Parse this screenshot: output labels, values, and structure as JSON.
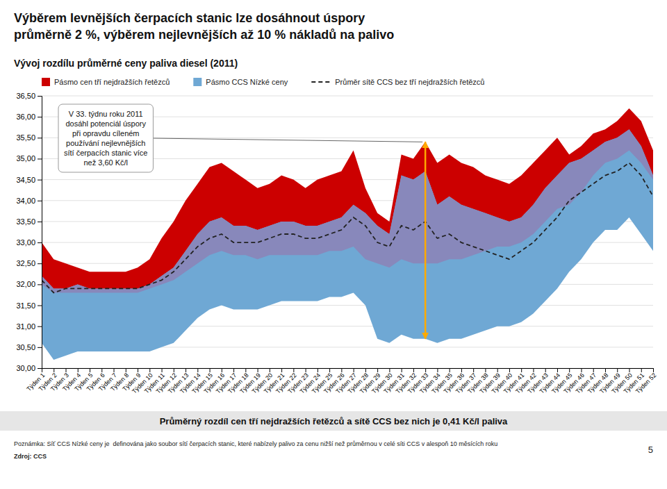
{
  "chart_data": {
    "type": "area",
    "title": "Výběrem levnějších čerpacích stanic lze dosáhnout úspory\nprůměrně 2 %, výběrem nejlevnějších až 10 % nákladů na palivo",
    "subtitle": "Vývoj rozdílu průměrné ceny paliva diesel (2011)",
    "x": [
      1,
      2,
      3,
      4,
      5,
      6,
      7,
      8,
      9,
      10,
      11,
      12,
      13,
      14,
      15,
      16,
      17,
      18,
      19,
      20,
      21,
      22,
      23,
      24,
      25,
      26,
      27,
      28,
      29,
      30,
      31,
      32,
      33,
      34,
      35,
      36,
      37,
      38,
      39,
      40,
      41,
      42,
      43,
      44,
      45,
      46,
      47,
      48,
      49,
      50,
      51,
      52
    ],
    "xlim": [
      1,
      52
    ],
    "xticks": [
      {
        "value": 1,
        "label": "Týden 1"
      },
      {
        "value": 2,
        "label": "Týden 2"
      },
      {
        "value": 3,
        "label": "Týden 3"
      },
      {
        "value": 4,
        "label": "Týden 4"
      },
      {
        "value": 5,
        "label": "Týden 5"
      },
      {
        "value": 6,
        "label": "Týden 6"
      },
      {
        "value": 7,
        "label": "Týden 7"
      },
      {
        "value": 8,
        "label": "Týden 8"
      },
      {
        "value": 9,
        "label": "Týden 9"
      },
      {
        "value": 10,
        "label": "Týden 10"
      },
      {
        "value": 11,
        "label": "Týden 11"
      },
      {
        "value": 12,
        "label": "Týden 12"
      },
      {
        "value": 13,
        "label": "Týden 13"
      },
      {
        "value": 14,
        "label": "Týden 14"
      },
      {
        "value": 15,
        "label": "Týden 15"
      },
      {
        "value": 16,
        "label": "Týden 16"
      },
      {
        "value": 17,
        "label": "Týden 17"
      },
      {
        "value": 18,
        "label": "Týden 18"
      },
      {
        "value": 19,
        "label": "Týden 19"
      },
      {
        "value": 20,
        "label": "Týden 20"
      },
      {
        "value": 21,
        "label": "Týden 21"
      },
      {
        "value": 22,
        "label": "Týden 22"
      },
      {
        "value": 23,
        "label": "Týden 23"
      },
      {
        "value": 24,
        "label": "Týden 24"
      },
      {
        "value": 25,
        "label": "Týden 25"
      },
      {
        "value": 26,
        "label": "Týden 26"
      },
      {
        "value": 27,
        "label": "Týden 27"
      },
      {
        "value": 28,
        "label": "Týden 28"
      },
      {
        "value": 29,
        "label": "Týden 29"
      },
      {
        "value": 30,
        "label": "Týden 30"
      },
      {
        "value": 31,
        "label": "Týden 31"
      },
      {
        "value": 32,
        "label": "Týden 32"
      },
      {
        "value": 33,
        "label": "Týden 33"
      },
      {
        "value": 34,
        "label": "Týden 34"
      },
      {
        "value": 35,
        "label": "Týden 35"
      },
      {
        "value": 36,
        "label": "Týden 36"
      },
      {
        "value": 37,
        "label": "Týden 37"
      },
      {
        "value": 38,
        "label": "Týden 38"
      },
      {
        "value": 39,
        "label": "Týden 39"
      },
      {
        "value": 40,
        "label": "Týden 40"
      },
      {
        "value": 41,
        "label": "Týden 41"
      },
      {
        "value": 42,
        "label": "Týden 42"
      },
      {
        "value": 43,
        "label": "Týden 43"
      },
      {
        "value": 44,
        "label": "Týden 44"
      },
      {
        "value": 45,
        "label": "Týden 45"
      },
      {
        "value": 46,
        "label": "Týden 46"
      },
      {
        "value": 47,
        "label": "Týden 47"
      },
      {
        "value": 48,
        "label": "Týden 48"
      },
      {
        "value": 49,
        "label": "Týden 49"
      },
      {
        "value": 50,
        "label": "Týden 50"
      },
      {
        "value": 51,
        "label": "Týden 51"
      },
      {
        "value": 52,
        "label": "Týden 52"
      }
    ],
    "ylim": [
      30.0,
      36.5
    ],
    "yticks": [
      {
        "value": 30.0,
        "label": "30,00"
      },
      {
        "value": 30.5,
        "label": "30,50"
      },
      {
        "value": 31.0,
        "label": "31,00"
      },
      {
        "value": 31.5,
        "label": "31,50"
      },
      {
        "value": 32.0,
        "label": "32,00"
      },
      {
        "value": 32.5,
        "label": "32,50"
      },
      {
        "value": 33.0,
        "label": "33,00"
      },
      {
        "value": 33.5,
        "label": "33,50"
      },
      {
        "value": 34.0,
        "label": "34,00"
      },
      {
        "value": 34.5,
        "label": "34,50"
      },
      {
        "value": 35.0,
        "label": "35,00"
      },
      {
        "value": 35.5,
        "label": "35,50"
      },
      {
        "value": 36.0,
        "label": "36,00"
      },
      {
        "value": 36.5,
        "label": "36,50"
      }
    ],
    "grid": true,
    "legend": "top",
    "series": [
      {
        "name": "Pásmo cen tří nejdražších řetězců",
        "type": "band",
        "color": "#cc0000",
        "upper": [
          33.0,
          32.6,
          32.5,
          32.4,
          32.3,
          32.3,
          32.3,
          32.3,
          32.4,
          32.6,
          33.1,
          33.5,
          34.0,
          34.4,
          34.8,
          34.9,
          34.7,
          34.5,
          34.3,
          34.4,
          34.6,
          34.5,
          34.3,
          34.5,
          34.6,
          34.7,
          35.2,
          34.3,
          33.7,
          33.5,
          35.1,
          35.0,
          35.4,
          34.9,
          35.1,
          34.9,
          34.8,
          34.6,
          34.5,
          34.4,
          34.6,
          34.9,
          35.2,
          35.5,
          35.1,
          35.3,
          35.6,
          35.7,
          35.9,
          36.2,
          35.9,
          35.2
        ],
        "lower": [
          32.0,
          31.8,
          31.8,
          31.8,
          31.8,
          31.8,
          31.8,
          31.8,
          31.8,
          31.9,
          32.0,
          32.1,
          32.3,
          32.5,
          32.7,
          32.8,
          32.7,
          32.7,
          32.6,
          32.7,
          32.7,
          32.7,
          32.7,
          32.7,
          32.8,
          32.8,
          32.9,
          32.6,
          32.5,
          32.4,
          32.6,
          32.5,
          32.5,
          32.5,
          32.6,
          32.6,
          32.7,
          32.8,
          32.9,
          32.9,
          33.0,
          33.2,
          33.5,
          33.8,
          33.9,
          34.2,
          34.6,
          34.9,
          35.0,
          35.2,
          34.9,
          34.5
        ]
      },
      {
        "name": "Pásmo CCS Nízké ceny",
        "type": "band",
        "color": "#6fa8d4",
        "upper": [
          32.2,
          31.9,
          31.9,
          32.0,
          31.9,
          31.9,
          31.9,
          31.9,
          31.9,
          32.0,
          32.2,
          32.4,
          32.8,
          33.2,
          33.5,
          33.6,
          33.4,
          33.4,
          33.3,
          33.4,
          33.5,
          33.5,
          33.4,
          33.4,
          33.5,
          33.6,
          33.9,
          33.7,
          33.4,
          33.2,
          34.6,
          34.5,
          34.7,
          33.9,
          34.1,
          33.9,
          33.8,
          33.7,
          33.6,
          33.5,
          33.6,
          33.9,
          34.3,
          34.6,
          34.9,
          35.0,
          35.2,
          35.4,
          35.5,
          35.7,
          35.3,
          34.6
        ],
        "lower": [
          30.6,
          30.2,
          30.3,
          30.4,
          30.4,
          30.4,
          30.4,
          30.4,
          30.4,
          30.4,
          30.5,
          30.6,
          30.9,
          31.2,
          31.4,
          31.5,
          31.4,
          31.4,
          31.4,
          31.5,
          31.6,
          31.6,
          31.6,
          31.6,
          31.7,
          31.7,
          31.8,
          31.5,
          30.7,
          30.6,
          30.8,
          30.7,
          30.7,
          30.6,
          30.7,
          30.7,
          30.8,
          30.9,
          31.0,
          31.0,
          31.1,
          31.3,
          31.6,
          31.9,
          32.3,
          32.6,
          33.0,
          33.3,
          33.3,
          33.6,
          33.2,
          32.8
        ]
      },
      {
        "type": "band",
        "color": "#8888bb",
        "upper": [
          32.2,
          31.9,
          31.9,
          32.0,
          31.9,
          31.9,
          31.9,
          31.9,
          31.9,
          32.0,
          32.2,
          32.4,
          32.8,
          33.2,
          33.5,
          33.6,
          33.4,
          33.4,
          33.3,
          33.4,
          33.5,
          33.5,
          33.4,
          33.4,
          33.5,
          33.6,
          33.9,
          33.7,
          33.4,
          33.2,
          34.6,
          34.5,
          34.7,
          33.9,
          34.1,
          33.9,
          33.8,
          33.7,
          33.6,
          33.5,
          33.6,
          33.9,
          34.3,
          34.6,
          34.9,
          35.0,
          35.2,
          35.4,
          35.5,
          35.7,
          35.3,
          34.6
        ],
        "lower": [
          32.0,
          31.8,
          31.8,
          31.8,
          31.8,
          31.8,
          31.8,
          31.8,
          31.8,
          31.9,
          32.0,
          32.1,
          32.3,
          32.5,
          32.7,
          32.8,
          32.7,
          32.7,
          32.6,
          32.7,
          32.7,
          32.7,
          32.7,
          32.7,
          32.8,
          32.8,
          32.9,
          32.6,
          32.5,
          32.4,
          32.6,
          32.5,
          32.5,
          32.5,
          32.6,
          32.6,
          32.7,
          32.8,
          32.9,
          32.9,
          33.0,
          33.2,
          33.5,
          33.8,
          33.9,
          34.2,
          34.6,
          34.9,
          35.0,
          35.2,
          34.9,
          34.5
        ]
      },
      {
        "name": "Průměr sítě CCS bez tří nejdražších řetězců",
        "type": "line",
        "color": "#222222",
        "line_style": "dashed",
        "values": [
          32.1,
          31.8,
          31.9,
          31.9,
          31.9,
          31.9,
          31.9,
          31.9,
          31.9,
          32.0,
          32.1,
          32.3,
          32.6,
          32.9,
          33.1,
          33.2,
          33.0,
          33.0,
          33.0,
          33.1,
          33.2,
          33.2,
          33.1,
          33.1,
          33.2,
          33.3,
          33.6,
          33.4,
          33.0,
          32.9,
          33.4,
          33.3,
          33.5,
          33.1,
          33.2,
          33.0,
          32.9,
          32.8,
          32.7,
          32.6,
          32.8,
          33.0,
          33.3,
          33.6,
          34.0,
          34.2,
          34.4,
          34.6,
          34.7,
          34.9,
          34.6,
          34.1
        ]
      }
    ],
    "annotations": [
      {
        "text": "V 33. týdnu roku 2011\ndosáhl potenciál úspory\npři opravdu cíleném\npoužívání nejlevnějších\nsítí čerpacích stanic více\nnež 3,60 Kč/l",
        "x": 33,
        "y_from": 35.4,
        "y_to": 30.7,
        "color": "#ffaa00"
      }
    ],
    "footer": "Průměrný rozdíl cen tří nejdražších řetězců a sítě CCS bez nich je 0,41 Kč/l paliva",
    "note": "Poznámka: Síť CCS Nízké ceny je  definována jako soubor sítí čerpacích stanic, které nabízely palivo za cenu nižší než průměrnou v celé síti CCS v alespoň 10 měsících roku",
    "source": "Zdroj: CCS",
    "page_number": "5"
  }
}
